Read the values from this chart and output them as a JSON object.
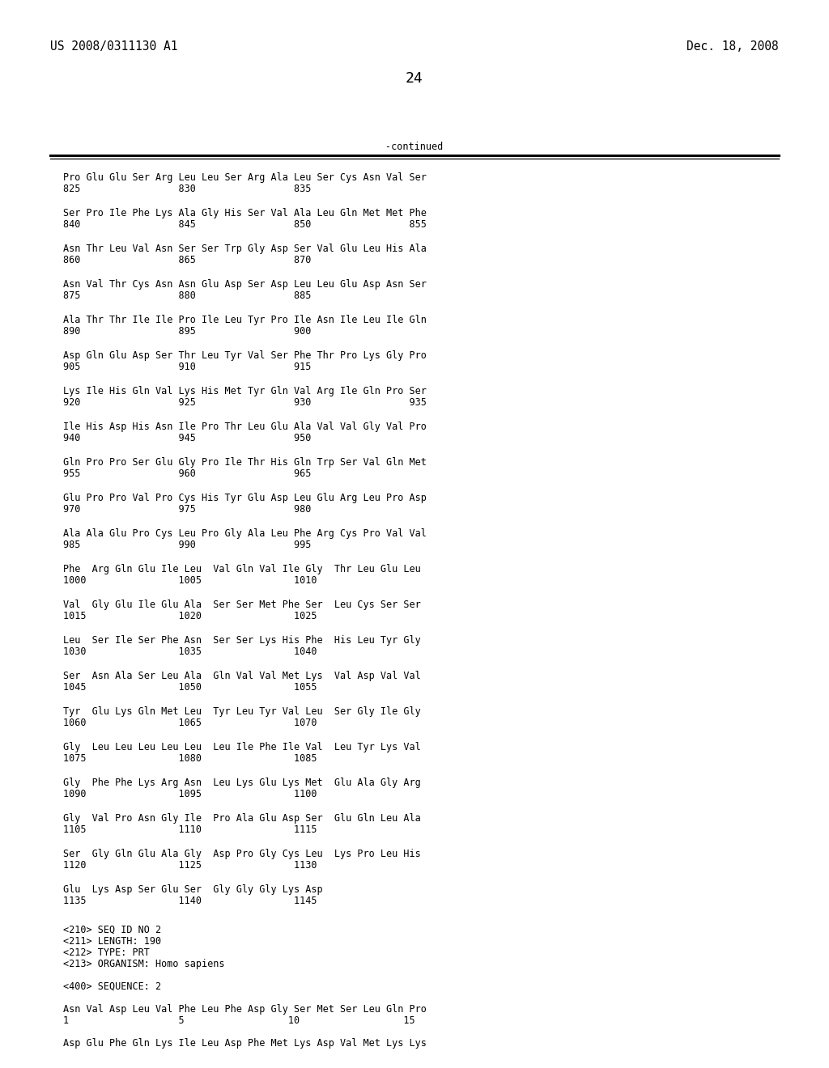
{
  "header_left": "US 2008/0311130 A1",
  "header_right": "Dec. 18, 2008",
  "page_number": "24",
  "continued_label": "-continued",
  "background_color": "#ffffff",
  "text_color": "#000000",
  "sequence_blocks": [
    [
      "Pro Glu Glu Ser Arg Leu Leu Ser Arg Ala Leu Ser Cys Asn Val Ser",
      "825                 830                 835"
    ],
    [
      "Ser Pro Ile Phe Lys Ala Gly His Ser Val Ala Leu Gln Met Met Phe",
      "840                 845                 850                 855"
    ],
    [
      "Asn Thr Leu Val Asn Ser Ser Trp Gly Asp Ser Val Glu Leu His Ala",
      "860                 865                 870"
    ],
    [
      "Asn Val Thr Cys Asn Asn Glu Asp Ser Asp Leu Leu Glu Asp Asn Ser",
      "875                 880                 885"
    ],
    [
      "Ala Thr Thr Ile Ile Pro Ile Leu Tyr Pro Ile Asn Ile Leu Ile Gln",
      "890                 895                 900"
    ],
    [
      "Asp Gln Glu Asp Ser Thr Leu Tyr Val Ser Phe Thr Pro Lys Gly Pro",
      "905                 910                 915"
    ],
    [
      "Lys Ile His Gln Val Lys His Met Tyr Gln Val Arg Ile Gln Pro Ser",
      "920                 925                 930                 935"
    ],
    [
      "Ile His Asp His Asn Ile Pro Thr Leu Glu Ala Val Val Gly Val Pro",
      "940                 945                 950"
    ],
    [
      "Gln Pro Pro Ser Glu Gly Pro Ile Thr His Gln Trp Ser Val Gln Met",
      "955                 960                 965"
    ],
    [
      "Glu Pro Pro Val Pro Cys His Tyr Glu Asp Leu Glu Arg Leu Pro Asp",
      "970                 975                 980"
    ],
    [
      "Ala Ala Glu Pro Cys Leu Pro Gly Ala Leu Phe Arg Cys Pro Val Val",
      "985                 990                 995"
    ],
    [
      "Phe  Arg Gln Glu Ile Leu  Val Gln Val Ile Gly  Thr Leu Glu Leu",
      "1000                1005                1010"
    ],
    [
      "Val  Gly Glu Ile Glu Ala  Ser Ser Met Phe Ser  Leu Cys Ser Ser",
      "1015                1020                1025"
    ],
    [
      "Leu  Ser Ile Ser Phe Asn  Ser Ser Lys His Phe  His Leu Tyr Gly",
      "1030                1035                1040"
    ],
    [
      "Ser  Asn Ala Ser Leu Ala  Gln Val Val Met Lys  Val Asp Val Val",
      "1045                1050                1055"
    ],
    [
      "Tyr  Glu Lys Gln Met Leu  Tyr Leu Tyr Val Leu  Ser Gly Ile Gly",
      "1060                1065                1070"
    ],
    [
      "Gly  Leu Leu Leu Leu Leu  Leu Ile Phe Ile Val  Leu Tyr Lys Val",
      "1075                1080                1085"
    ],
    [
      "Gly  Phe Phe Lys Arg Asn  Leu Lys Glu Lys Met  Glu Ala Gly Arg",
      "1090                1095                1100"
    ],
    [
      "Gly  Val Pro Asn Gly Ile  Pro Ala Glu Asp Ser  Glu Gln Leu Ala",
      "1105                1110                1115"
    ],
    [
      "Ser  Gly Gln Glu Ala Gly  Asp Pro Gly Cys Leu  Lys Pro Leu His",
      "1120                1125                1130"
    ],
    [
      "Glu  Lys Asp Ser Glu Ser  Gly Gly Gly Lys Asp",
      "1135                1140                1145"
    ]
  ],
  "footer_lines": [
    "<210> SEQ ID NO 2",
    "<211> LENGTH: 190",
    "<212> TYPE: PRT",
    "<213> ORGANISM: Homo sapiens",
    "",
    "<400> SEQUENCE: 2",
    "",
    "Asn Val Asp Leu Val Phe Leu Phe Asp Gly Ser Met Ser Leu Gln Pro",
    "1                   5                  10                  15",
    "",
    "Asp Glu Phe Gln Lys Ile Leu Asp Phe Met Lys Asp Val Met Lys Lys"
  ]
}
